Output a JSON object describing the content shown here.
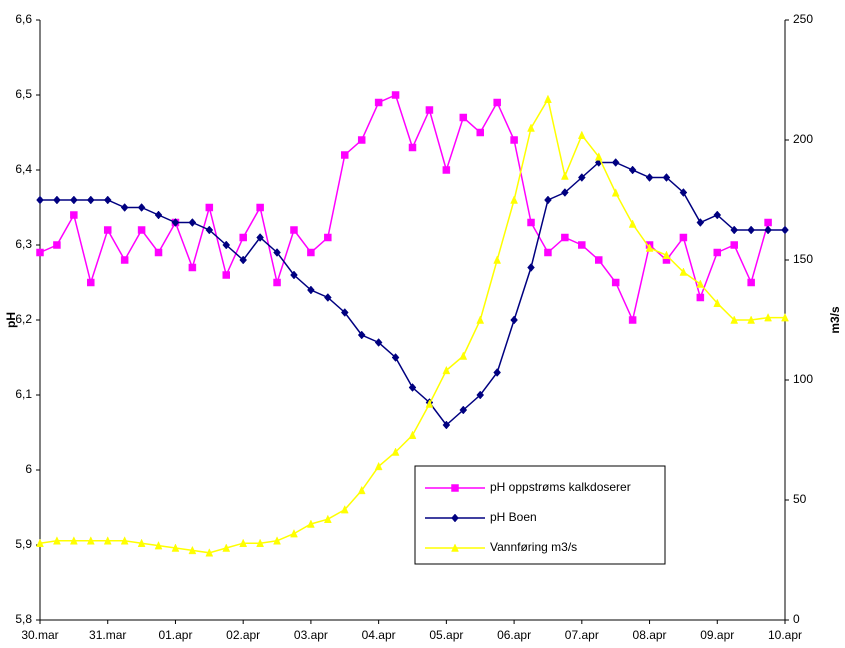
{
  "chart_data": {
    "type": "line",
    "x": [
      0,
      0.25,
      0.5,
      0.75,
      1,
      1.25,
      1.5,
      1.75,
      2,
      2.25,
      2.5,
      2.75,
      3,
      3.25,
      3.5,
      3.75,
      4,
      4.25,
      4.5,
      4.75,
      5,
      5.25,
      5.5,
      5.75,
      6,
      6.25,
      6.5,
      6.75,
      7,
      7.25,
      7.5,
      7.75,
      8,
      8.25,
      8.5,
      8.75,
      9,
      9.25,
      9.5,
      9.75,
      10,
      10.25,
      10.5,
      10.75,
      11
    ],
    "xlim": [
      0,
      11
    ],
    "xticks": [
      {
        "value": 0,
        "label": "30.mar"
      },
      {
        "value": 1,
        "label": "31.mar"
      },
      {
        "value": 2,
        "label": "01.apr"
      },
      {
        "value": 3,
        "label": "02.apr"
      },
      {
        "value": 4,
        "label": "03.apr"
      },
      {
        "value": 5,
        "label": "04.apr"
      },
      {
        "value": 6,
        "label": "05.apr"
      },
      {
        "value": 7,
        "label": "06.apr"
      },
      {
        "value": 8,
        "label": "07.apr"
      },
      {
        "value": 9,
        "label": "08.apr"
      },
      {
        "value": 10,
        "label": "09.apr"
      },
      {
        "value": 11,
        "label": "10.apr"
      }
    ],
    "ylabel": "pH",
    "y2label": "m3/s",
    "ylim": [
      5.8,
      6.6
    ],
    "yticks": [
      {
        "value": 5.8,
        "label": "5,8"
      },
      {
        "value": 5.9,
        "label": "5,9"
      },
      6,
      {
        "value": 6.1,
        "label": "6,1"
      },
      {
        "value": 6.2,
        "label": "6,2"
      },
      {
        "value": 6.3,
        "label": "6,3"
      },
      {
        "value": 6.4,
        "label": "6,4"
      },
      {
        "value": 6.5,
        "label": "6,5"
      },
      {
        "value": 6.6,
        "label": "6,6"
      }
    ],
    "y2lim": [
      0,
      250
    ],
    "y2ticks": [
      0,
      50,
      100,
      150,
      200,
      250
    ],
    "grid": false,
    "legend": "lower right",
    "series": [
      {
        "name": "pH oppstrøms kalkdoserer",
        "color": "#ff00ff",
        "marker": "square",
        "values": [
          6.29,
          6.3,
          6.34,
          6.25,
          6.32,
          6.28,
          6.32,
          6.29,
          6.33,
          6.27,
          6.35,
          6.26,
          6.31,
          6.35,
          6.25,
          6.32,
          6.29,
          6.31,
          6.42,
          6.44,
          6.49,
          6.5,
          6.43,
          6.48,
          6.4,
          6.47,
          6.45,
          6.49,
          6.44,
          6.33,
          6.29,
          6.31,
          6.3,
          6.28,
          6.25,
          6.2,
          6.3,
          6.28,
          6.31,
          6.23,
          6.29,
          6.3,
          6.25,
          6.33,
          null
        ]
      },
      {
        "name": "pH Boen",
        "color": "#000080",
        "marker": "diamond",
        "values": [
          6.36,
          6.36,
          6.36,
          6.36,
          6.36,
          6.35,
          6.35,
          6.34,
          6.33,
          6.33,
          6.32,
          6.3,
          6.28,
          6.31,
          6.29,
          6.26,
          6.24,
          6.23,
          6.21,
          6.18,
          6.17,
          6.15,
          6.11,
          6.09,
          6.06,
          6.08,
          6.1,
          6.13,
          6.2,
          6.27,
          6.36,
          6.37,
          6.39,
          6.41,
          6.41,
          6.4,
          6.39,
          6.39,
          6.37,
          6.33,
          6.34,
          6.32,
          6.32,
          6.32,
          6.32
        ]
      },
      {
        "name": "Vannføring m3/s",
        "color": "#ffff00",
        "marker": "triangle",
        "axis": "y2",
        "values": [
          32,
          33,
          33,
          33,
          33,
          33,
          32,
          31,
          30,
          29,
          28,
          30,
          32,
          32,
          33,
          36,
          40,
          42,
          46,
          54,
          64,
          70,
          77,
          90,
          104,
          110,
          125,
          150,
          175,
          205,
          217,
          185,
          202,
          193,
          178,
          165,
          155,
          152,
          145,
          140,
          132,
          125,
          125,
          126,
          126
        ]
      }
    ]
  }
}
